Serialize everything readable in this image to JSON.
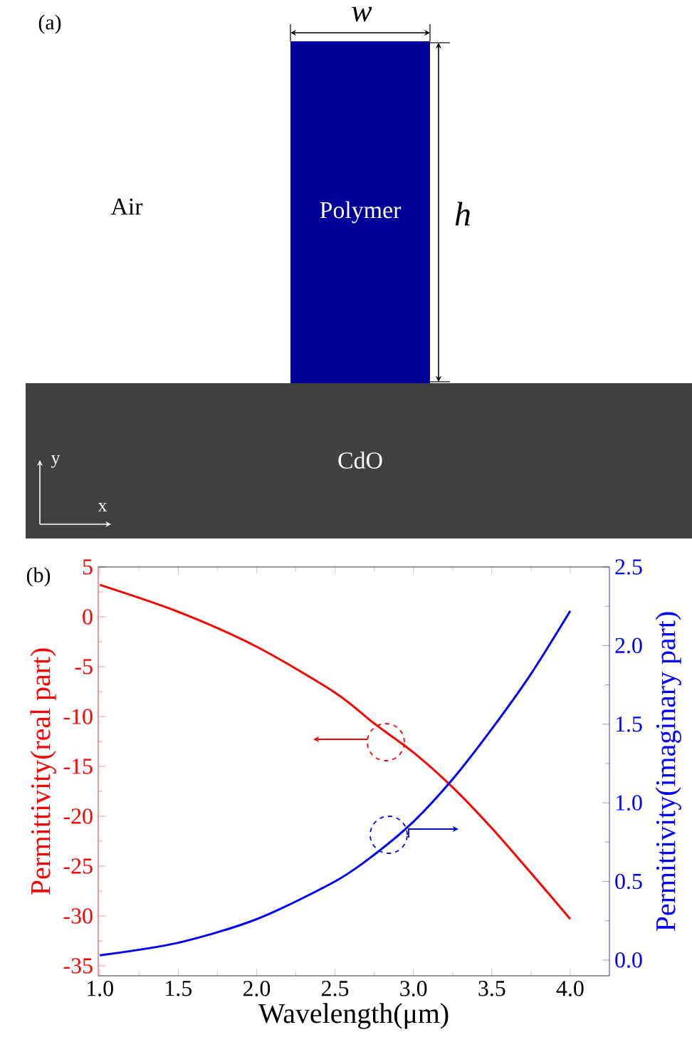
{
  "chart_data": [
    {
      "type": "other",
      "annotations": [
        "(a)",
        "w",
        "h",
        "Air",
        "Polymer",
        "CdO",
        "y",
        "x"
      ]
    },
    {
      "type": "line",
      "xlabel": "Wavelength(μm)",
      "ylabel": "Permittivity(real part)",
      "y2label": "Permittivity(imaginary part)",
      "annotations": [
        "(b)"
      ],
      "x": [
        1.0,
        1.5,
        2.0,
        2.5,
        2.75,
        3.0,
        3.25,
        3.5,
        3.75,
        4.0
      ],
      "series": [
        {
          "color": "#ff0000",
          "values": [
            3.2,
            0.5,
            -3.0,
            -7.6,
            -10.7,
            -13.6,
            -17.1,
            -21.2,
            -25.7,
            -30.3
          ]
        },
        {
          "color": "#0000ff",
          "axis": "y2",
          "values": [
            0.03,
            0.11,
            0.26,
            0.5,
            0.67,
            0.88,
            1.15,
            1.47,
            1.82,
            2.22
          ]
        }
      ],
      "xlim": [
        0.99,
        4.25
      ],
      "xticks": [
        {
          "value": 1,
          "label": "1.0"
        },
        {
          "value": 1.5,
          "label": "1.5"
        },
        {
          "value": 2,
          "label": "2.0"
        },
        {
          "value": 2.5,
          "label": "2.5"
        },
        {
          "value": 3,
          "label": "3.0"
        },
        {
          "value": 3.5,
          "label": "3.5"
        },
        {
          "value": 4,
          "label": "4.0"
        }
      ],
      "ylim": [
        -36,
        5
      ],
      "yticks": [
        -35,
        -30,
        -25,
        -20,
        -15,
        -10,
        -5,
        0,
        5
      ],
      "y2lim": [
        -0.1,
        2.5
      ],
      "y2ticks": [
        {
          "value": 0,
          "label": "0.0"
        },
        {
          "value": 0.5,
          "label": "0.5"
        },
        {
          "value": 1,
          "label": "1.0"
        },
        {
          "value": 1.5,
          "label": "1.5"
        },
        {
          "value": 2,
          "label": "2.0"
        },
        {
          "value": 2.5,
          "label": "2.5"
        }
      ]
    }
  ]
}
